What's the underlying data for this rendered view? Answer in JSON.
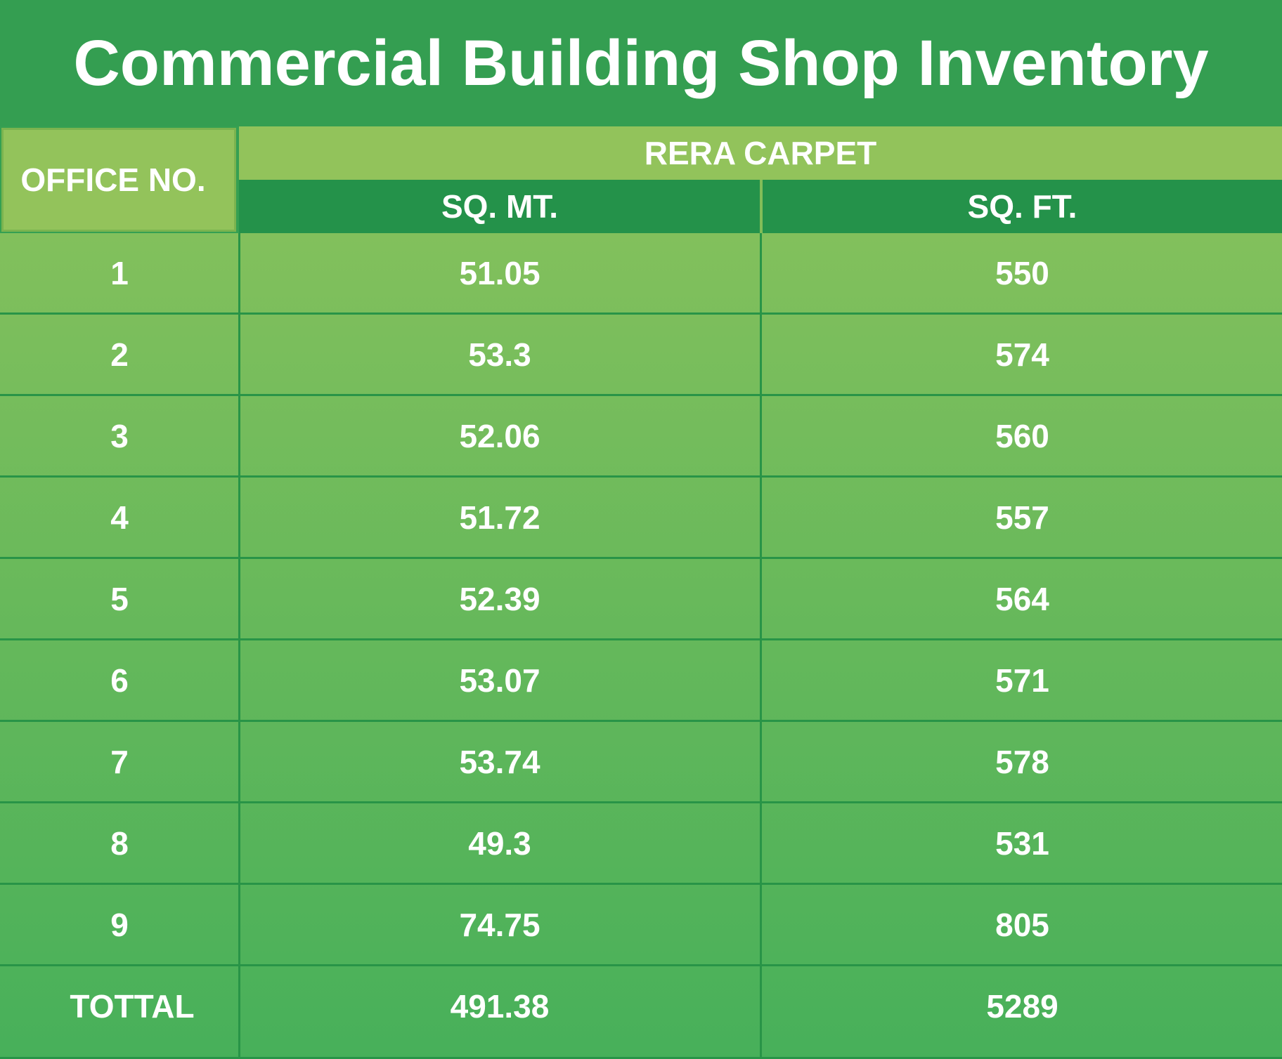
{
  "title": "Commercial Building Shop Inventory",
  "header": {
    "office_no": "OFFICE NO.",
    "group": "RERA CARPET",
    "sq_mt": "SQ. MT.",
    "sq_ft": "SQ. FT."
  },
  "rows": [
    {
      "office": "1",
      "sq_mt": "51.05",
      "sq_ft": "550"
    },
    {
      "office": "2",
      "sq_mt": "53.3",
      "sq_ft": "574"
    },
    {
      "office": "3",
      "sq_mt": "52.06",
      "sq_ft": "560"
    },
    {
      "office": "4",
      "sq_mt": "51.72",
      "sq_ft": "557"
    },
    {
      "office": "5",
      "sq_mt": "52.39",
      "sq_ft": "564"
    },
    {
      "office": "6",
      "sq_mt": "53.07",
      "sq_ft": "571"
    },
    {
      "office": "7",
      "sq_mt": "53.74",
      "sq_ft": "578"
    },
    {
      "office": "8",
      "sq_mt": "49.3",
      "sq_ft": "531"
    },
    {
      "office": "9",
      "sq_mt": "74.75",
      "sq_ft": "805"
    }
  ],
  "total": {
    "office": "TOTTAL",
    "sq_mt": "491.38",
    "sq_ft": "5289"
  },
  "colors": {
    "title_bg": "#349e51",
    "header_light": "#93c35b",
    "header_dark": "#24924a",
    "grid_line": "#289447"
  }
}
